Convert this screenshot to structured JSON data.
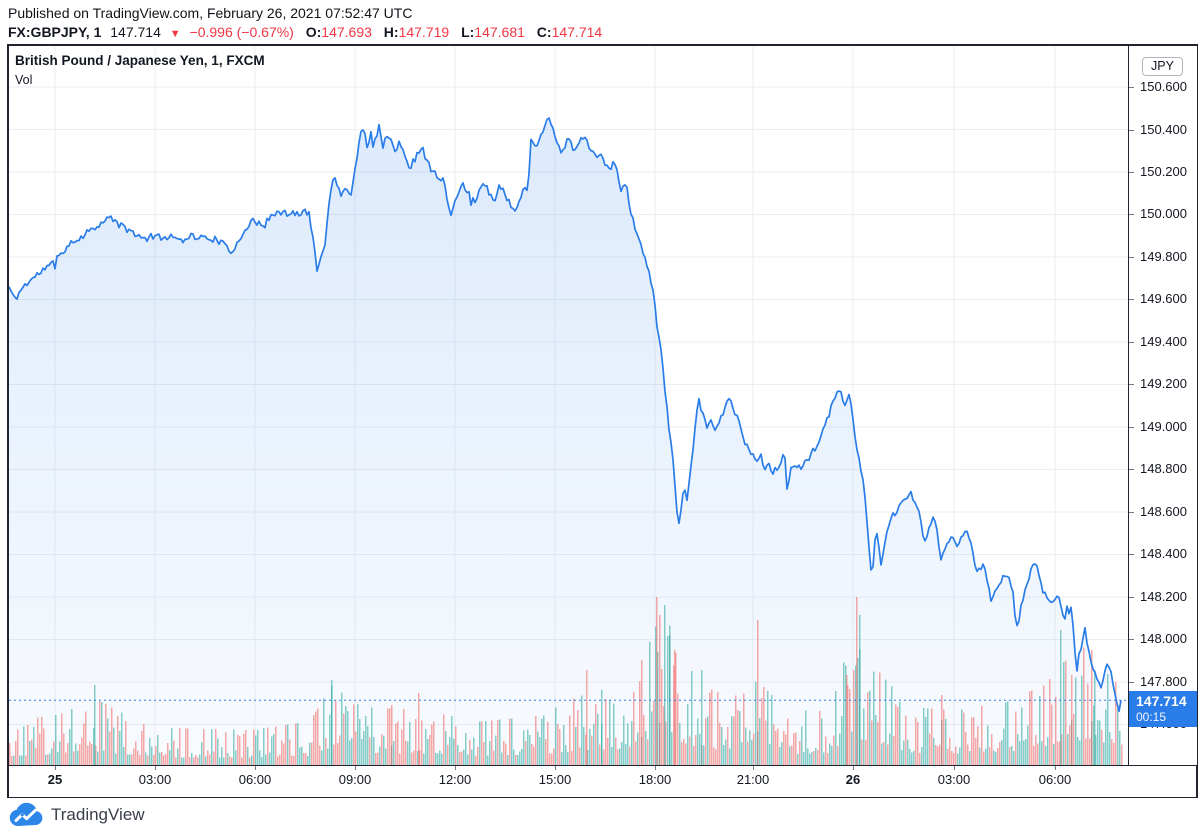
{
  "header": {
    "published_line": "Published on TradingView.com, February 26, 2021 07:52:47 UTC"
  },
  "quote_bar": {
    "symbol": "FX:GBPJPY, 1",
    "last": "147.714",
    "arrow": "▼",
    "change": "−0.996 (−0.67%)",
    "ohlc": [
      {
        "label": "O:",
        "value": "147.693"
      },
      {
        "label": "H:",
        "value": "147.719"
      },
      {
        "label": "L:",
        "value": "147.681"
      },
      {
        "label": "C:",
        "value": "147.714"
      }
    ]
  },
  "chart": {
    "title": "British Pound / Japanese Yen, 1, FXCM",
    "indicator_label": "Vol",
    "currency_badge": "JPY",
    "price_label": {
      "value": "147.714",
      "countdown": "00:15"
    }
  },
  "footer": {
    "brand": "TradingView"
  },
  "colors": {
    "accent": "#2a7de8",
    "area_top": "rgba(42,125,232,0.16)",
    "area_bottom": "rgba(42,125,232,0.03)",
    "vol_up": "rgba(38,166,154,0.55)",
    "vol_down": "rgba(239,83,80,0.50)",
    "red": "#f23645",
    "grid": "#eceef2",
    "text": "#131722",
    "border": "#20242e"
  },
  "chart_data": {
    "type": "area",
    "title": "British Pound / Japanese Yen, 1, FXCM",
    "symbol": "GBPJPY",
    "interval": "1",
    "exchange": "FXCM",
    "current_price": 147.714,
    "session_high": 150.46,
    "session_low": 147.66,
    "ylim": [
      147.409,
      150.793
    ],
    "y_axis_labels": [
      "150.600",
      "150.400",
      "150.200",
      "150.000",
      "149.800",
      "149.600",
      "149.400",
      "149.200",
      "149.000",
      "148.800",
      "148.600",
      "148.400",
      "148.200",
      "148.000",
      "147.800",
      "147.600"
    ],
    "x_axis_labels": [
      {
        "text": "25",
        "x": 46,
        "bold": true
      },
      {
        "text": "03:00",
        "x": 146,
        "bold": false
      },
      {
        "text": "06:00",
        "x": 246,
        "bold": false
      },
      {
        "text": "09:00",
        "x": 346,
        "bold": false
      },
      {
        "text": "12:00",
        "x": 446,
        "bold": false
      },
      {
        "text": "15:00",
        "x": 546,
        "bold": false
      },
      {
        "text": "18:00",
        "x": 646,
        "bold": false
      },
      {
        "text": "21:00",
        "x": 744,
        "bold": false
      },
      {
        "text": "26",
        "x": 844,
        "bold": true
      },
      {
        "text": "03:00",
        "x": 945,
        "bold": false
      },
      {
        "text": "06:00",
        "x": 1046,
        "bold": false
      }
    ],
    "price_points": [
      [
        0,
        149.66
      ],
      [
        6,
        149.6
      ],
      [
        14,
        149.66
      ],
      [
        24,
        149.7
      ],
      [
        34,
        149.74
      ],
      [
        44,
        149.77
      ],
      [
        54,
        149.83
      ],
      [
        64,
        149.87
      ],
      [
        74,
        149.9
      ],
      [
        84,
        149.94
      ],
      [
        94,
        149.96
      ],
      [
        102,
        149.99
      ],
      [
        110,
        149.95
      ],
      [
        118,
        149.93
      ],
      [
        126,
        149.91
      ],
      [
        134,
        149.88
      ],
      [
        142,
        149.9
      ],
      [
        152,
        149.89
      ],
      [
        162,
        149.9
      ],
      [
        172,
        149.89
      ],
      [
        182,
        149.9
      ],
      [
        192,
        149.89
      ],
      [
        202,
        149.89
      ],
      [
        212,
        149.87
      ],
      [
        222,
        149.82
      ],
      [
        232,
        149.9
      ],
      [
        242,
        149.97
      ],
      [
        252,
        149.95
      ],
      [
        262,
        149.99
      ],
      [
        272,
        150.01
      ],
      [
        282,
        150.0
      ],
      [
        292,
        150.01
      ],
      [
        299,
        150.01
      ],
      [
        304,
        149.9
      ],
      [
        308,
        149.73
      ],
      [
        312,
        149.8
      ],
      [
        316,
        149.87
      ],
      [
        320,
        150.05
      ],
      [
        324,
        150.17
      ],
      [
        328,
        150.15
      ],
      [
        332,
        150.1
      ],
      [
        337,
        150.13
      ],
      [
        342,
        150.09
      ],
      [
        346,
        150.2
      ],
      [
        350,
        150.35
      ],
      [
        354,
        150.41
      ],
      [
        358,
        150.33
      ],
      [
        362,
        150.38
      ],
      [
        366,
        150.36
      ],
      [
        370,
        150.41
      ],
      [
        374,
        150.33
      ],
      [
        378,
        150.37
      ],
      [
        382,
        150.35
      ],
      [
        386,
        150.29
      ],
      [
        390,
        150.33
      ],
      [
        394,
        150.3
      ],
      [
        398,
        150.24
      ],
      [
        402,
        150.22
      ],
      [
        406,
        150.26
      ],
      [
        410,
        150.3
      ],
      [
        414,
        150.32
      ],
      [
        418,
        150.27
      ],
      [
        422,
        150.21
      ],
      [
        426,
        150.19
      ],
      [
        430,
        150.16
      ],
      [
        434,
        150.18
      ],
      [
        438,
        150.08
      ],
      [
        442,
        150.01
      ],
      [
        446,
        150.05
      ],
      [
        450,
        150.1
      ],
      [
        454,
        150.14
      ],
      [
        458,
        150.11
      ],
      [
        462,
        150.08
      ],
      [
        466,
        150.05
      ],
      [
        470,
        150.1
      ],
      [
        474,
        150.15
      ],
      [
        478,
        150.12
      ],
      [
        482,
        150.08
      ],
      [
        486,
        150.06
      ],
      [
        490,
        150.14
      ],
      [
        494,
        150.12
      ],
      [
        498,
        150.08
      ],
      [
        502,
        150.04
      ],
      [
        506,
        150.02
      ],
      [
        510,
        150.07
      ],
      [
        514,
        150.1
      ],
      [
        518,
        150.14
      ],
      [
        522,
        150.34
      ],
      [
        526,
        150.32
      ],
      [
        530,
        150.36
      ],
      [
        534,
        150.4
      ],
      [
        538,
        150.44
      ],
      [
        541,
        150.46
      ],
      [
        544,
        150.4
      ],
      [
        548,
        150.34
      ],
      [
        552,
        150.3
      ],
      [
        556,
        150.32
      ],
      [
        560,
        150.36
      ],
      [
        564,
        150.31
      ],
      [
        568,
        150.33
      ],
      [
        572,
        150.35
      ],
      [
        576,
        150.37
      ],
      [
        580,
        150.31
      ],
      [
        584,
        150.29
      ],
      [
        588,
        150.28
      ],
      [
        592,
        150.28
      ],
      [
        597,
        150.24
      ],
      [
        602,
        150.21
      ],
      [
        607,
        150.23
      ],
      [
        612,
        150.12
      ],
      [
        617,
        150.16
      ],
      [
        620,
        150.04
      ],
      [
        624,
        149.97
      ],
      [
        628,
        149.91
      ],
      [
        632,
        149.86
      ],
      [
        636,
        149.8
      ],
      [
        640,
        149.72
      ],
      [
        644,
        149.65
      ],
      [
        648,
        149.48
      ],
      [
        652,
        149.35
      ],
      [
        656,
        149.18
      ],
      [
        660,
        149.0
      ],
      [
        663,
        148.9
      ],
      [
        666,
        148.72
      ],
      [
        669,
        148.53
      ],
      [
        672,
        148.62
      ],
      [
        675,
        148.7
      ],
      [
        678,
        148.66
      ],
      [
        681,
        148.76
      ],
      [
        684,
        148.9
      ],
      [
        687,
        149.05
      ],
      [
        690,
        149.12
      ],
      [
        693,
        149.08
      ],
      [
        696,
        149.02
      ],
      [
        699,
        149.0
      ],
      [
        702,
        149.04
      ],
      [
        705,
        148.98
      ],
      [
        708,
        149.01
      ],
      [
        711,
        149.04
      ],
      [
        714,
        149.06
      ],
      [
        717,
        149.1
      ],
      [
        720,
        149.14
      ],
      [
        723,
        149.12
      ],
      [
        726,
        149.07
      ],
      [
        729,
        149.03
      ],
      [
        732,
        148.98
      ],
      [
        736,
        148.93
      ],
      [
        740,
        148.9
      ],
      [
        744,
        148.87
      ],
      [
        748,
        148.84
      ],
      [
        752,
        148.86
      ],
      [
        756,
        148.81
      ],
      [
        760,
        148.83
      ],
      [
        764,
        148.79
      ],
      [
        768,
        148.81
      ],
      [
        772,
        148.84
      ],
      [
        775,
        148.9
      ],
      [
        778,
        148.72
      ],
      [
        781,
        148.78
      ],
      [
        784,
        148.82
      ],
      [
        788,
        148.8
      ],
      [
        792,
        148.81
      ],
      [
        797,
        148.84
      ],
      [
        802,
        148.87
      ],
      [
        807,
        148.91
      ],
      [
        812,
        148.96
      ],
      [
        817,
        149.01
      ],
      [
        822,
        149.1
      ],
      [
        826,
        149.14
      ],
      [
        830,
        149.17
      ],
      [
        834,
        149.13
      ],
      [
        837,
        149.11
      ],
      [
        840,
        149.15
      ],
      [
        843,
        149.07
      ],
      [
        846,
        148.97
      ],
      [
        849,
        148.87
      ],
      [
        852,
        148.8
      ],
      [
        855,
        148.72
      ],
      [
        858,
        148.57
      ],
      [
        861,
        148.38
      ],
      [
        863,
        148.26
      ],
      [
        866,
        148.46
      ],
      [
        869,
        148.5
      ],
      [
        872,
        148.34
      ],
      [
        875,
        148.42
      ],
      [
        878,
        148.5
      ],
      [
        881,
        148.55
      ],
      [
        884,
        148.58
      ],
      [
        888,
        148.61
      ],
      [
        892,
        148.63
      ],
      [
        897,
        148.66
      ],
      [
        902,
        148.69
      ],
      [
        906,
        148.64
      ],
      [
        910,
        148.61
      ],
      [
        913,
        148.52
      ],
      [
        916,
        148.45
      ],
      [
        919,
        148.51
      ],
      [
        922,
        148.55
      ],
      [
        925,
        148.57
      ],
      [
        928,
        148.51
      ],
      [
        932,
        148.38
      ],
      [
        936,
        148.43
      ],
      [
        940,
        148.46
      ],
      [
        944,
        148.48
      ],
      [
        948,
        148.45
      ],
      [
        952,
        148.48
      ],
      [
        956,
        148.51
      ],
      [
        960,
        148.48
      ],
      [
        964,
        148.4
      ],
      [
        967,
        148.32
      ],
      [
        971,
        148.34
      ],
      [
        975,
        148.36
      ],
      [
        978,
        148.28
      ],
      [
        982,
        148.18
      ],
      [
        986,
        148.24
      ],
      [
        989,
        148.26
      ],
      [
        993,
        148.29
      ],
      [
        997,
        148.31
      ],
      [
        1000,
        148.29
      ],
      [
        1004,
        148.21
      ],
      [
        1007,
        148.04
      ],
      [
        1010,
        148.11
      ],
      [
        1014,
        148.19
      ],
      [
        1018,
        148.27
      ],
      [
        1022,
        148.32
      ],
      [
        1026,
        148.36
      ],
      [
        1030,
        148.31
      ],
      [
        1034,
        148.23
      ],
      [
        1038,
        148.19
      ],
      [
        1042,
        148.16
      ],
      [
        1046,
        148.2
      ],
      [
        1049,
        148.22
      ],
      [
        1052,
        148.17
      ],
      [
        1055,
        148.12
      ],
      [
        1058,
        148.13
      ],
      [
        1062,
        148.14
      ],
      [
        1065,
        148.03
      ],
      [
        1067,
        147.83
      ],
      [
        1070,
        147.93
      ],
      [
        1073,
        147.98
      ],
      [
        1076,
        148.04
      ],
      [
        1079,
        147.97
      ],
      [
        1082,
        147.89
      ],
      [
        1086,
        147.85
      ],
      [
        1089,
        147.81
      ],
      [
        1092,
        147.78
      ],
      [
        1095,
        147.84
      ],
      [
        1098,
        147.88
      ],
      [
        1101,
        147.85
      ],
      [
        1104,
        147.8
      ],
      [
        1107,
        147.72
      ],
      [
        1110,
        147.67
      ],
      [
        1112,
        147.714
      ]
    ],
    "volume_envelope": [
      [
        0,
        30
      ],
      [
        50,
        35
      ],
      [
        85,
        46
      ],
      [
        140,
        26
      ],
      [
        240,
        24
      ],
      [
        300,
        30
      ],
      [
        322,
        55
      ],
      [
        352,
        40
      ],
      [
        410,
        38
      ],
      [
        470,
        30
      ],
      [
        530,
        34
      ],
      [
        570,
        48
      ],
      [
        610,
        44
      ],
      [
        640,
        85
      ],
      [
        657,
        115
      ],
      [
        672,
        75
      ],
      [
        692,
        55
      ],
      [
        722,
        46
      ],
      [
        748,
        58
      ],
      [
        780,
        36
      ],
      [
        820,
        40
      ],
      [
        845,
        95
      ],
      [
        862,
        70
      ],
      [
        900,
        40
      ],
      [
        940,
        38
      ],
      [
        990,
        42
      ],
      [
        1035,
        55
      ],
      [
        1052,
        70
      ],
      [
        1082,
        85
      ],
      [
        1100,
        60
      ],
      [
        1112,
        55
      ]
    ],
    "volume_spikes": [
      [
        85,
        80,
        "u"
      ],
      [
        322,
        85,
        "u"
      ],
      [
        382,
        60,
        "d"
      ],
      [
        409,
        72,
        "d"
      ],
      [
        577,
        95,
        "d"
      ],
      [
        592,
        75,
        "u"
      ],
      [
        632,
        105,
        "d"
      ],
      [
        647,
        168,
        "d"
      ],
      [
        650,
        150,
        "d"
      ],
      [
        655,
        160,
        "u"
      ],
      [
        660,
        130,
        "u"
      ],
      [
        665,
        115,
        "d"
      ],
      [
        692,
        95,
        "u"
      ],
      [
        748,
        145,
        "d"
      ],
      [
        837,
        90,
        "d"
      ],
      [
        847,
        168,
        "d"
      ],
      [
        850,
        150,
        "u"
      ],
      [
        932,
        70,
        "d"
      ],
      [
        1051,
        135,
        "u"
      ],
      [
        1062,
        90,
        "d"
      ],
      [
        1082,
        115,
        "d"
      ],
      [
        1085,
        95,
        "u"
      ]
    ],
    "render": {
      "seed": 11,
      "noise_amp": 0.016,
      "bar_step": 2
    }
  }
}
